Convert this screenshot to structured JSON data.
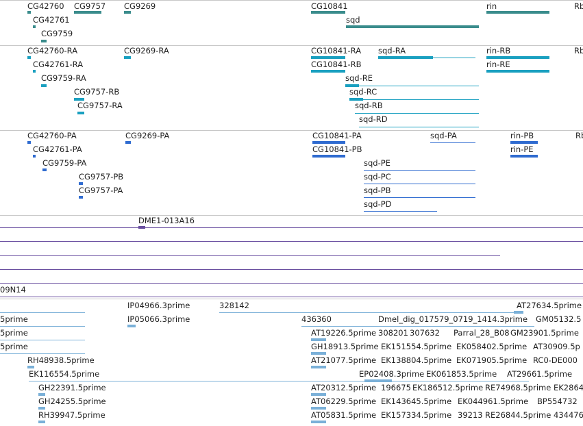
{
  "colors": {
    "gene": "#3a8c8c",
    "mrna": "#1aa0c0",
    "protein": "#2f6bd0",
    "bac": "#6a4fa0",
    "est": "#7ab0d8",
    "divider": "#c8c8c8"
  },
  "gene_track": {
    "labels": [
      "CG42760",
      "CG9757",
      "CG9269",
      "CG10841",
      "rin",
      "Rb",
      "CG42761",
      "sqd",
      "CG9759"
    ]
  },
  "mrna_track": {
    "labels": [
      "CG42760-RA",
      "CG9269-RA",
      "CG10841-RA",
      "sqd-RA",
      "rin-RB",
      "Rb",
      "CG42761-RA",
      "CG10841-RB",
      "rin-RE",
      "CG9759-RA",
      "sqd-RE",
      "CG9757-RB",
      "sqd-RC",
      "CG9757-RA",
      "sqd-RB",
      "sqd-RD"
    ]
  },
  "protein_track": {
    "labels": [
      "CG42760-PA",
      "CG9269-PA",
      "CG10841-PA",
      "sqd-PA",
      "rin-PB",
      "Rb",
      "CG42761-PA",
      "CG10841-PB",
      "rin-PE",
      "CG9759-PA",
      "sqd-PE",
      "CG9757-PB",
      "sqd-PC",
      "CG9757-PA",
      "sqd-PB",
      "sqd-PD"
    ]
  },
  "bac_track": {
    "labels": [
      "DME1-013A16",
      "09N14"
    ]
  },
  "est_track": {
    "labels": [
      "IP04966.3prime",
      "328142",
      "AT27634.5prime",
      "5prime",
      "IP05066.3prime",
      "436360",
      "Dmel_dig_017579_0719_1414.3prime",
      "GM05132.5",
      "5prime",
      "AT19226.5prime",
      "308201",
      "307632",
      "Parral_28_B08",
      "GM23901.5prime",
      "5prime",
      "GH18913.5prime",
      "EK151554.5prime",
      "EK058402.5prime",
      "AT30909.5p",
      "RH48938.5prime",
      "AT21077.5prime",
      "EK138804.5prime",
      "EK071905.5prime",
      "RC0-DE000",
      "EK116554.5prime",
      "EP02408.3prime",
      "EK061853.5prime",
      "AT29661.5prime",
      "GH22391.5prime",
      "AT20312.5prime",
      "196675",
      "EK186512.5prime",
      "RE74968.5prime",
      "EK2864",
      "GH24255.5prime",
      "AT06229.5prime",
      "EK143645.5prime",
      "EK044961.5prime",
      "BP554732",
      "RH39947.5prime",
      "AT05831.5prime",
      "EK157334.5prime",
      "39213",
      "RE26844.5prime",
      "434476"
    ]
  }
}
